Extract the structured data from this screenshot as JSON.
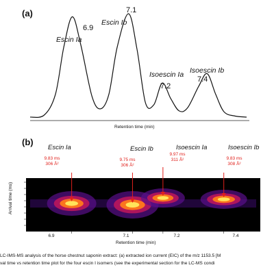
{
  "chart_data": [
    {
      "type": "line",
      "panel_label": "(a)",
      "xlabel": "Retention time (min)",
      "x": [
        6.75,
        6.8,
        6.84,
        6.87,
        6.9,
        6.93,
        6.97,
        7.0,
        7.03,
        7.06,
        7.1,
        7.13,
        7.16,
        7.19,
        7.22,
        7.25,
        7.28,
        7.31,
        7.35,
        7.38,
        7.41,
        7.44,
        7.48,
        7.52
      ],
      "y": [
        0.0,
        0.02,
        0.22,
        0.68,
        0.97,
        0.7,
        0.2,
        0.08,
        0.22,
        0.68,
        1.0,
        0.66,
        0.14,
        0.12,
        0.33,
        0.18,
        0.06,
        0.09,
        0.3,
        0.42,
        0.22,
        0.05,
        0.01,
        0.0
      ],
      "peaks": [
        {
          "name": "Escin Ia",
          "rt": "6.9",
          "x": 6.9
        },
        {
          "name": "Escin Ib",
          "rt": "7.1",
          "x": 7.1
        },
        {
          "name": "Isoescin Ia",
          "rt": "7.2",
          "x": 7.22
        },
        {
          "name": "Isoescin Ib",
          "rt": "7.4",
          "x": 7.38
        }
      ]
    },
    {
      "type": "heatmap",
      "panel_label": "(b)",
      "xlabel": "Retention time (min)",
      "ylabel": "Arrival time (ms)",
      "xticks": [
        "6.9",
        "7.1",
        "7.2",
        "7.4"
      ],
      "spots": [
        {
          "name": "Escin Ia",
          "rt": 6.9,
          "arrival_time": "9.83 ms",
          "ccs": "306 Å²"
        },
        {
          "name": "Escin Ib",
          "rt": 7.1,
          "arrival_time": "9.75 ms",
          "ccs": "306 Å²"
        },
        {
          "name": "Isoescin Ia",
          "rt": 7.2,
          "arrival_time": "9.97 ms",
          "ccs": "311 Å²"
        },
        {
          "name": "Isoescin Ib",
          "rt": 7.4,
          "arrival_time": "9.83 ms",
          "ccs": "308 Å²"
        }
      ]
    }
  ],
  "caption": {
    "line1": "LC-IMS-MS analysis of the horse chestnut saponin extract: (a) extracted ion current (EIC) of the m/z 1153.5 [M",
    "line2": "val time vs retention time plot for the four escin I isomers (see the experimental section for the LC-MS condi"
  },
  "colors": {
    "heatmap_bg": "#000000",
    "annotation": "#e0201b",
    "line": "#111111"
  }
}
